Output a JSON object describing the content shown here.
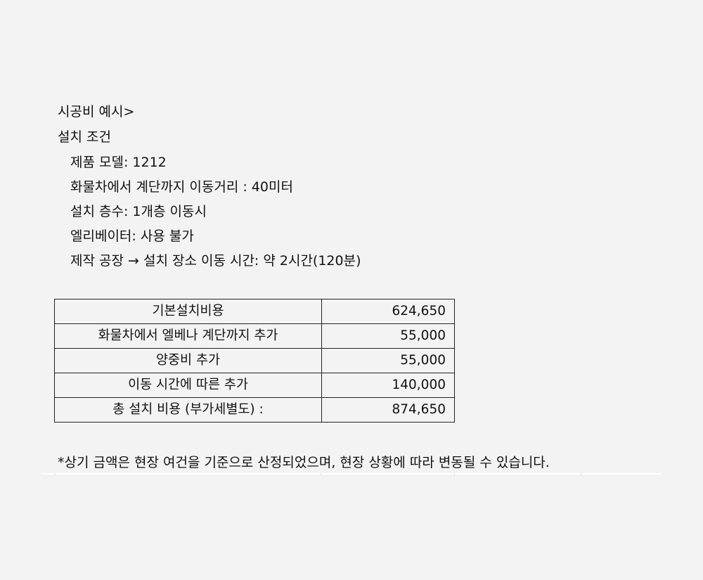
{
  "heading": "시공비 예시>",
  "conditions_title": "설치 조건",
  "conditions": [
    "제품 모델: 1212",
    "화물차에서 계단까지 이동거리 : 40미터",
    "설치 층수: 1개층 이동시",
    "엘리베이터: 사용 불가",
    "제작 공장 → 설치 장소 이동 시간: 약 2시간(120분)"
  ],
  "cost_table": [
    {
      "item": "기본설치비용",
      "amount": "624,650"
    },
    {
      "item": "화물차에서 엘베나 계단까지 추가",
      "amount": "55,000"
    },
    {
      "item": "양중비 추가",
      "amount": "55,000"
    },
    {
      "item": "이동 시간에 따른 추가",
      "amount": "140,000"
    },
    {
      "item": "총 설치 비용 (부가세별도) :",
      "amount": "874,650"
    }
  ],
  "note": "*상기 금액은 현장 여건을 기준으로 산정되었으며, 현장 상황에 따라 변동될 수 있습니다."
}
